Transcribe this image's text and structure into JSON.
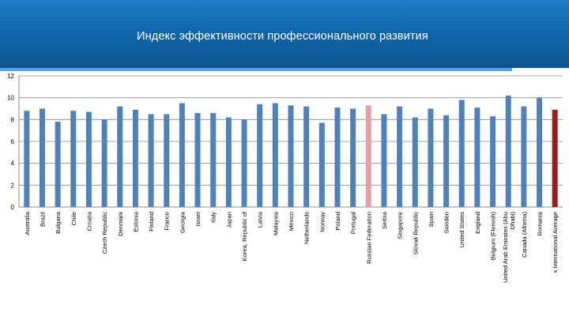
{
  "header": {
    "title": "Индекс эффективности профессионального развития"
  },
  "colors": {
    "banner": "#1471b8",
    "bar_default": "#4f81bd",
    "bar_russia": "#e6a1a5",
    "bar_average": "#9b1c1c"
  },
  "chart_data": {
    "type": "bar",
    "title": "",
    "xlabel": "",
    "ylabel": "",
    "ylim": [
      0,
      12
    ],
    "yticks": [
      "0",
      "2",
      "4",
      "6",
      "8",
      "10",
      "12"
    ],
    "grid": true,
    "categories": [
      "Australia",
      "Brazil",
      "Bulgaria",
      "Chile",
      "Croatia",
      "Czech Republic",
      "Denmark",
      "Estonia",
      "Finland",
      "France",
      "Georgia",
      "Israel",
      "Italy",
      "Japan",
      "Korea, Republic of",
      "Latvia",
      "Malaysia",
      "Mexico",
      "Netherlands",
      "Norway",
      "Poland",
      "Portugal",
      "Russian Federation",
      "Serbia",
      "Singapore",
      "Slovak Republic",
      "Spain",
      "Sweden",
      "United States",
      "England",
      "Belgium (Flemish)",
      "United Arab Emirates (Abu Dhabi)",
      "Canada (Alberta)",
      "Romania",
      "x International Average"
    ],
    "values": [
      8.8,
      9.0,
      7.8,
      8.8,
      8.7,
      8.0,
      9.2,
      8.9,
      8.5,
      8.5,
      9.5,
      8.6,
      8.6,
      8.2,
      8.0,
      9.4,
      9.5,
      9.3,
      9.2,
      7.7,
      9.1,
      9.0,
      9.3,
      8.5,
      9.2,
      8.2,
      9.0,
      8.4,
      9.8,
      9.1,
      8.3,
      10.2,
      9.2,
      10.0,
      8.9
    ],
    "highlight": {
      "Russian Federation": "#e6a1a5",
      "x International Average": "#9b1c1c"
    }
  }
}
